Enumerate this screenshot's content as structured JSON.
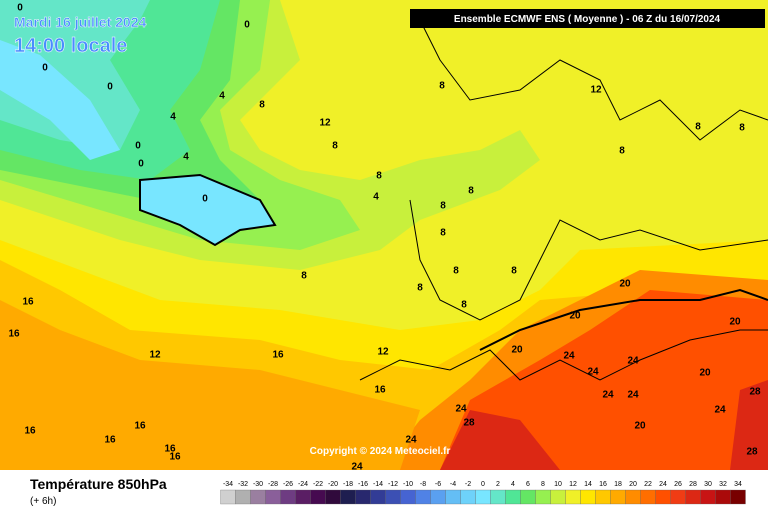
{
  "header": {
    "date": "Mardi 16 juillet 2024",
    "time": "14:00 locale",
    "model": "Ensemble ECMWF ENS  ( Moyenne )  -  06 Z du 16/07/2024"
  },
  "copyright": "Copyright © 2024 Meteociel.fr",
  "footer": {
    "title": "Température 850hPa",
    "lead": "(+ 6h)"
  },
  "legend": {
    "ticks": [
      -34,
      -32,
      -30,
      -28,
      -26,
      -24,
      -22,
      -20,
      -18,
      -16,
      -14,
      -12,
      -10,
      -8,
      -6,
      -4,
      -2,
      0,
      2,
      4,
      6,
      8,
      10,
      12,
      14,
      16,
      18,
      20,
      22,
      24,
      26,
      28,
      30,
      32,
      34
    ],
    "colors": [
      "#d0d0d0",
      "#b0b0b0",
      "#9a7fa0",
      "#8a5f9a",
      "#6e3c82",
      "#5a1e64",
      "#460a50",
      "#300a3c",
      "#1e1e50",
      "#28286e",
      "#323c96",
      "#3c50b4",
      "#4664d2",
      "#5082e6",
      "#5aa0f0",
      "#64bef5",
      "#6ed2fa",
      "#78e6ff",
      "#64e6c8",
      "#50e696",
      "#64e664",
      "#96f050",
      "#c8f03c",
      "#f0f028",
      "#ffe600",
      "#ffc800",
      "#ffaa00",
      "#ff8c00",
      "#ff6e00",
      "#ff5000",
      "#f03c14",
      "#dc2814",
      "#c81414",
      "#aa0a0a",
      "#780000"
    ]
  },
  "contour_labels": [
    "0",
    "0",
    "0",
    "0",
    "4",
    "8",
    "4",
    "0",
    "0",
    "4",
    "0",
    "12",
    "8",
    "8",
    "12",
    "8",
    "8",
    "8",
    "8",
    "4",
    "8",
    "8",
    "8",
    "8",
    "8",
    "8",
    "8",
    "8",
    "20",
    "20",
    "20",
    "20",
    "24",
    "24",
    "24",
    "20",
    "24",
    "24",
    "28",
    "24",
    "16",
    "16",
    "12",
    "16",
    "12",
    "16",
    "24",
    "28",
    "20",
    "28",
    "16",
    "16",
    "16",
    "16",
    "16",
    "24",
    "24"
  ]
}
